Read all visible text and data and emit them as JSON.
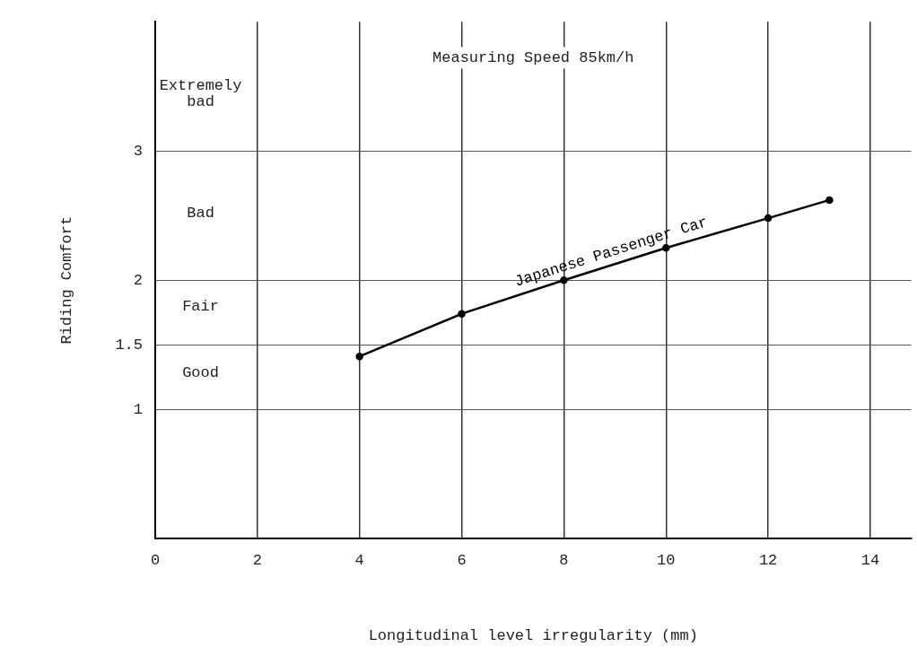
{
  "chart_data": {
    "type": "line",
    "xlabel": "Longitudinal level irregularity (mm)",
    "ylabel": "Riding Comfort",
    "x": [
      4,
      6,
      8,
      10,
      12,
      13.2
    ],
    "series": [
      {
        "name": "Japanese Passenger Car",
        "color": "#000000",
        "values": [
          1.41,
          1.74,
          2.0,
          2.25,
          2.48,
          2.62
        ]
      }
    ],
    "xlim": [
      0,
      14.8
    ],
    "xticks": [
      0,
      2,
      4,
      6,
      8,
      10,
      12,
      14
    ],
    "ylim": [
      0,
      4
    ],
    "yticks": [
      1,
      {
        "value": 1.5,
        "label": "1.5"
      },
      2,
      3
    ],
    "grid": true,
    "legend": false,
    "marker": "circle",
    "line_style": "solid",
    "annotations": [
      "Measuring Speed 85km/h",
      "Extremely bad",
      "Bad",
      "Fair",
      "Good"
    ]
  }
}
